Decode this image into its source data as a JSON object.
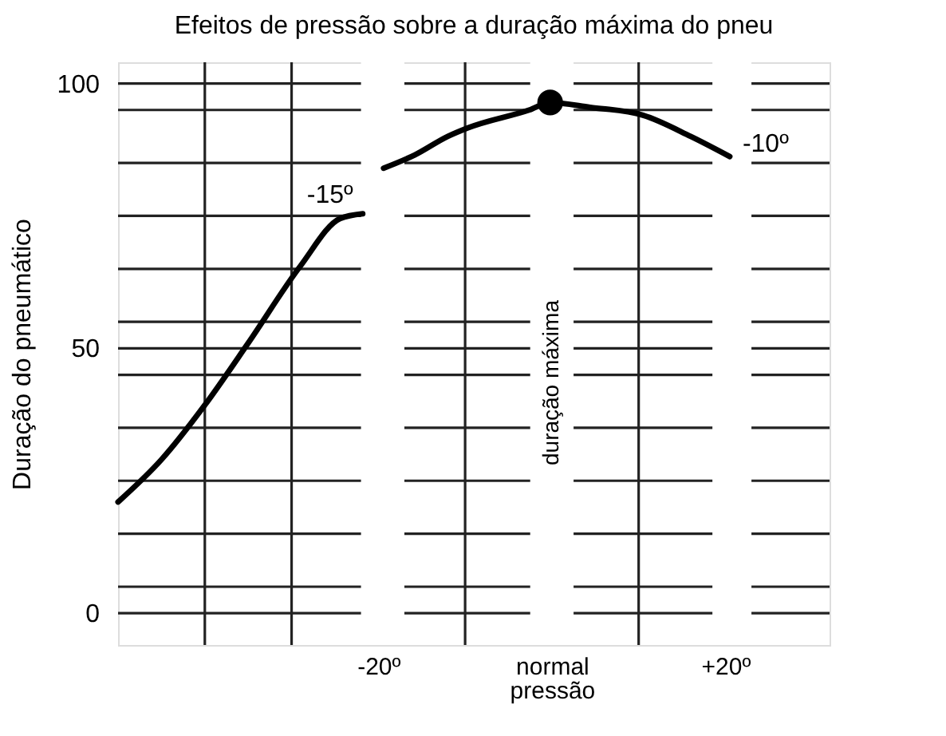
{
  "chart_data": {
    "type": "line",
    "title": "Efeitos de pressão sobre a duração máxima do pneu",
    "ylabel": "Duração do pneumático",
    "xlim": [
      -50,
      32
    ],
    "ylim": [
      -6,
      104
    ],
    "xticks": [
      {
        "value": -40,
        "label": null
      },
      {
        "value": -30,
        "label": null
      },
      {
        "value": -20,
        "label": "-20º"
      },
      {
        "value": -10,
        "label": null
      },
      {
        "value": 0,
        "label": "normal\npressão"
      },
      {
        "value": 10,
        "label": null
      },
      {
        "value": 20,
        "label": "+20º"
      }
    ],
    "yticks": [
      0,
      {
        "value": 5,
        "label": null
      },
      {
        "value": 15,
        "label": null
      },
      {
        "value": 25,
        "label": null
      },
      {
        "value": 35,
        "label": null
      },
      {
        "value": 45,
        "label": null
      },
      50,
      {
        "value": 55,
        "label": null
      },
      {
        "value": 65,
        "label": null
      },
      {
        "value": 75,
        "label": null
      },
      {
        "value": 85,
        "label": null
      },
      {
        "value": 95,
        "label": null
      },
      100
    ],
    "grid": true,
    "line_style": "solid",
    "bands": [
      {
        "axis": "x",
        "from": -22,
        "to": -17,
        "label": null,
        "color": "#ffffff"
      },
      {
        "axis": "x",
        "from": -2.5,
        "to": 2.5,
        "label": "duração máxima",
        "color": "#ffffff"
      },
      {
        "axis": "x",
        "from": 18.5,
        "to": 23,
        "label": null,
        "color": "#ffffff"
      }
    ],
    "series": [
      {
        "color": "#000000",
        "x": [
          -50,
          -45,
          -40,
          -35,
          -29,
          -24.4,
          -21.8
        ],
        "values": [
          21,
          29,
          39.3,
          51,
          65.5,
          74.5,
          75.4
        ]
      },
      {
        "color": "#000000",
        "x": [
          -19.4,
          -15.8,
          -12,
          -9.7,
          -2.6,
          -0.2,
          4.4,
          10.5,
          16,
          20.5
        ],
        "values": [
          84,
          86.5,
          90,
          91.6,
          95,
          96.4,
          95.5,
          94,
          90,
          86.2
        ]
      },
      {
        "type": "scatter",
        "color": "#000000",
        "marker": "circle",
        "x": [
          -0.2
        ],
        "values": [
          96.4
        ]
      }
    ],
    "annotations": [
      {
        "text": "-15º",
        "x": -21.8,
        "y": 75.4
      },
      {
        "text": "-10º",
        "x": 20.5,
        "y": 86.2
      }
    ]
  }
}
